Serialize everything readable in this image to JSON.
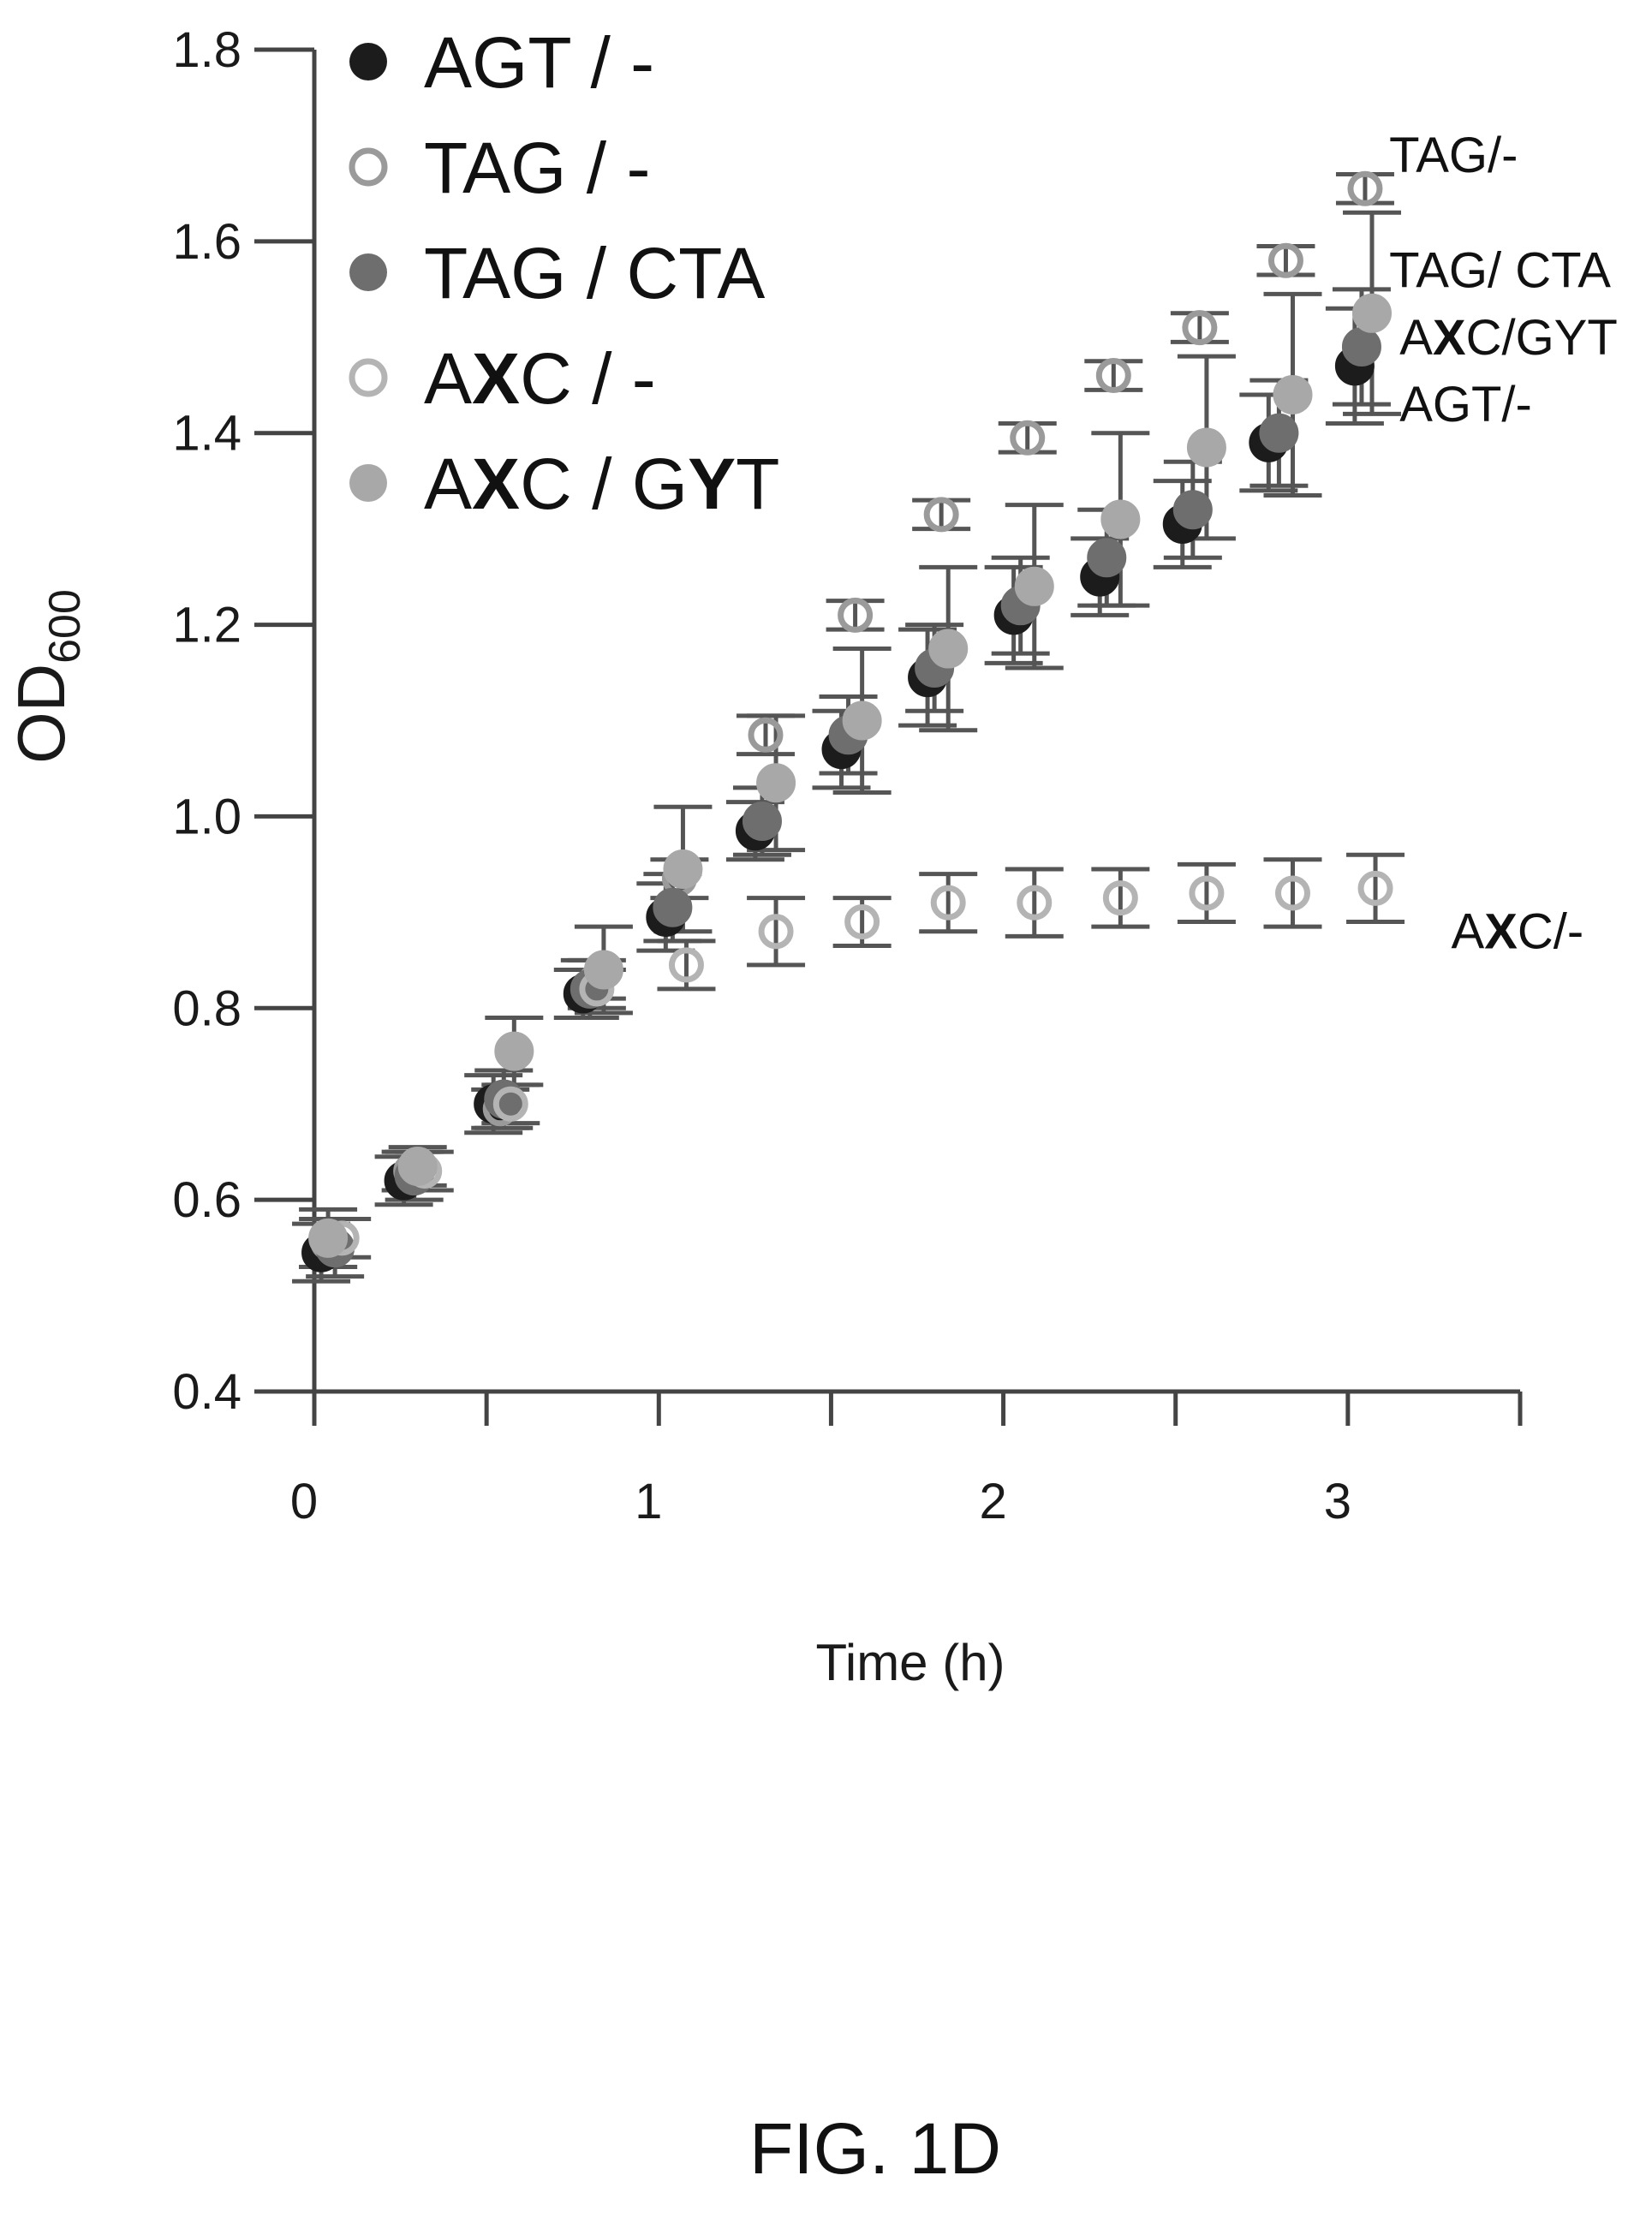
{
  "chart_data": {
    "type": "scatter",
    "xlabel": "Time (h)",
    "ylabel": {
      "main": "OD",
      "subscript": "600"
    },
    "xlim": [
      0,
      3.5
    ],
    "ylim": [
      0.4,
      1.8
    ],
    "xticks": [
      "0",
      "1",
      "2",
      "3"
    ],
    "yticks": [
      "0.4",
      "0.6",
      "0.8",
      "1.0",
      "1.2",
      "1.4",
      "1.6",
      "1.8"
    ],
    "legend_placement": "top-left",
    "grid": false,
    "series": [
      {
        "name": "AGT / -",
        "name_parts": [
          {
            "t": "AGT / -",
            "b": false
          }
        ],
        "marker": "filled",
        "color": "#1c1c1c",
        "x": [
          0.02,
          0.26,
          0.52,
          0.78,
          1.02,
          1.28,
          1.53,
          1.78,
          2.03,
          2.28,
          2.52,
          2.77,
          3.02
        ],
        "y": [
          0.545,
          0.62,
          0.7,
          0.815,
          0.895,
          0.985,
          1.07,
          1.145,
          1.21,
          1.25,
          1.305,
          1.39,
          1.47
        ],
        "err": [
          0.03,
          0.025,
          0.03,
          0.025,
          0.035,
          0.03,
          0.04,
          0.05,
          0.05,
          0.04,
          0.045,
          0.05,
          0.06
        ]
      },
      {
        "name": "TAG / -",
        "name_parts": [
          {
            "t": "TAG / -",
            "b": false
          }
        ],
        "marker": "open",
        "color": "#9a9a9a",
        "x": [
          0.04,
          0.28,
          0.54,
          0.82,
          1.06,
          1.31,
          1.57,
          1.82,
          2.07,
          2.32,
          2.57,
          2.82,
          3.05
        ],
        "y": [
          0.555,
          0.63,
          0.695,
          0.83,
          0.935,
          1.085,
          1.21,
          1.315,
          1.395,
          1.46,
          1.51,
          1.58,
          1.655
        ],
        "err": [
          0.025,
          0.02,
          0.02,
          0.02,
          0.02,
          0.02,
          0.015,
          0.015,
          0.015,
          0.015,
          0.015,
          0.015,
          0.015
        ]
      },
      {
        "name": "TAG / CTA",
        "name_parts": [
          {
            "t": "TAG / CTA",
            "b": false
          }
        ],
        "marker": "filled",
        "color": "#6e6e6e",
        "x": [
          0.06,
          0.29,
          0.55,
          0.8,
          1.04,
          1.3,
          1.55,
          1.8,
          2.05,
          2.3,
          2.55,
          2.8,
          3.04
        ],
        "y": [
          0.55,
          0.625,
          0.705,
          0.82,
          0.905,
          0.995,
          1.085,
          1.155,
          1.22,
          1.27,
          1.32,
          1.4,
          1.49
        ],
        "err": [
          0.03,
          0.025,
          0.03,
          0.03,
          0.035,
          0.035,
          0.04,
          0.045,
          0.05,
          0.05,
          0.05,
          0.055,
          0.06
        ]
      },
      {
        "name": "AXC / -",
        "name_parts": [
          {
            "t": "A",
            "b": false
          },
          {
            "t": "X",
            "b": true
          },
          {
            "t": "C / -",
            "b": false
          }
        ],
        "marker": "open",
        "color": "#b4b4b4",
        "x": [
          0.08,
          0.32,
          0.57,
          0.82,
          1.08,
          1.34,
          1.59,
          1.84,
          2.09,
          2.34,
          2.59,
          2.84,
          3.08
        ],
        "y": [
          0.56,
          0.63,
          0.7,
          0.82,
          0.845,
          0.88,
          0.89,
          0.91,
          0.91,
          0.915,
          0.92,
          0.92,
          0.925
        ],
        "err": [
          0.02,
          0.02,
          0.02,
          0.02,
          0.025,
          0.035,
          0.025,
          0.03,
          0.035,
          0.03,
          0.03,
          0.035,
          0.035
        ]
      },
      {
        "name": "AXC / GYT",
        "name_parts": [
          {
            "t": "A",
            "b": false
          },
          {
            "t": "X",
            "b": true
          },
          {
            "t": "C / G",
            "b": false
          },
          {
            "t": "Y",
            "b": true
          },
          {
            "t": "T",
            "b": false
          }
        ],
        "marker": "filled",
        "color": "#a8a8a8",
        "x": [
          0.04,
          0.3,
          0.58,
          0.84,
          1.07,
          1.34,
          1.59,
          1.84,
          2.09,
          2.34,
          2.59,
          2.84,
          3.07
        ],
        "y": [
          0.56,
          0.635,
          0.755,
          0.84,
          0.945,
          1.035,
          1.1,
          1.175,
          1.24,
          1.31,
          1.385,
          1.44,
          1.525
        ],
        "err": [
          0.03,
          0.02,
          0.035,
          0.045,
          0.065,
          0.07,
          0.075,
          0.085,
          0.085,
          0.09,
          0.095,
          0.105,
          0.105
        ]
      }
    ],
    "annotations": [
      {
        "parts": [
          {
            "t": "TAG/-",
            "b": false
          }
        ],
        "x": 3.12,
        "y": 1.69
      },
      {
        "parts": [
          {
            "t": "TAG/ CTA",
            "b": false
          }
        ],
        "x": 3.12,
        "y": 1.57
      },
      {
        "parts": [
          {
            "t": "A",
            "b": false
          },
          {
            "t": "X",
            "b": true
          },
          {
            "t": "C/GYT",
            "b": false
          }
        ],
        "x": 3.15,
        "y": 1.5
      },
      {
        "parts": [
          {
            "t": "AGT/-",
            "b": false
          }
        ],
        "x": 3.15,
        "y": 1.43
      },
      {
        "parts": [
          {
            "t": "A",
            "b": false
          },
          {
            "t": "X",
            "b": true
          },
          {
            "t": "C/-",
            "b": false
          }
        ],
        "x": 3.3,
        "y": 0.88
      }
    ]
  },
  "caption": "FIG. 1D"
}
